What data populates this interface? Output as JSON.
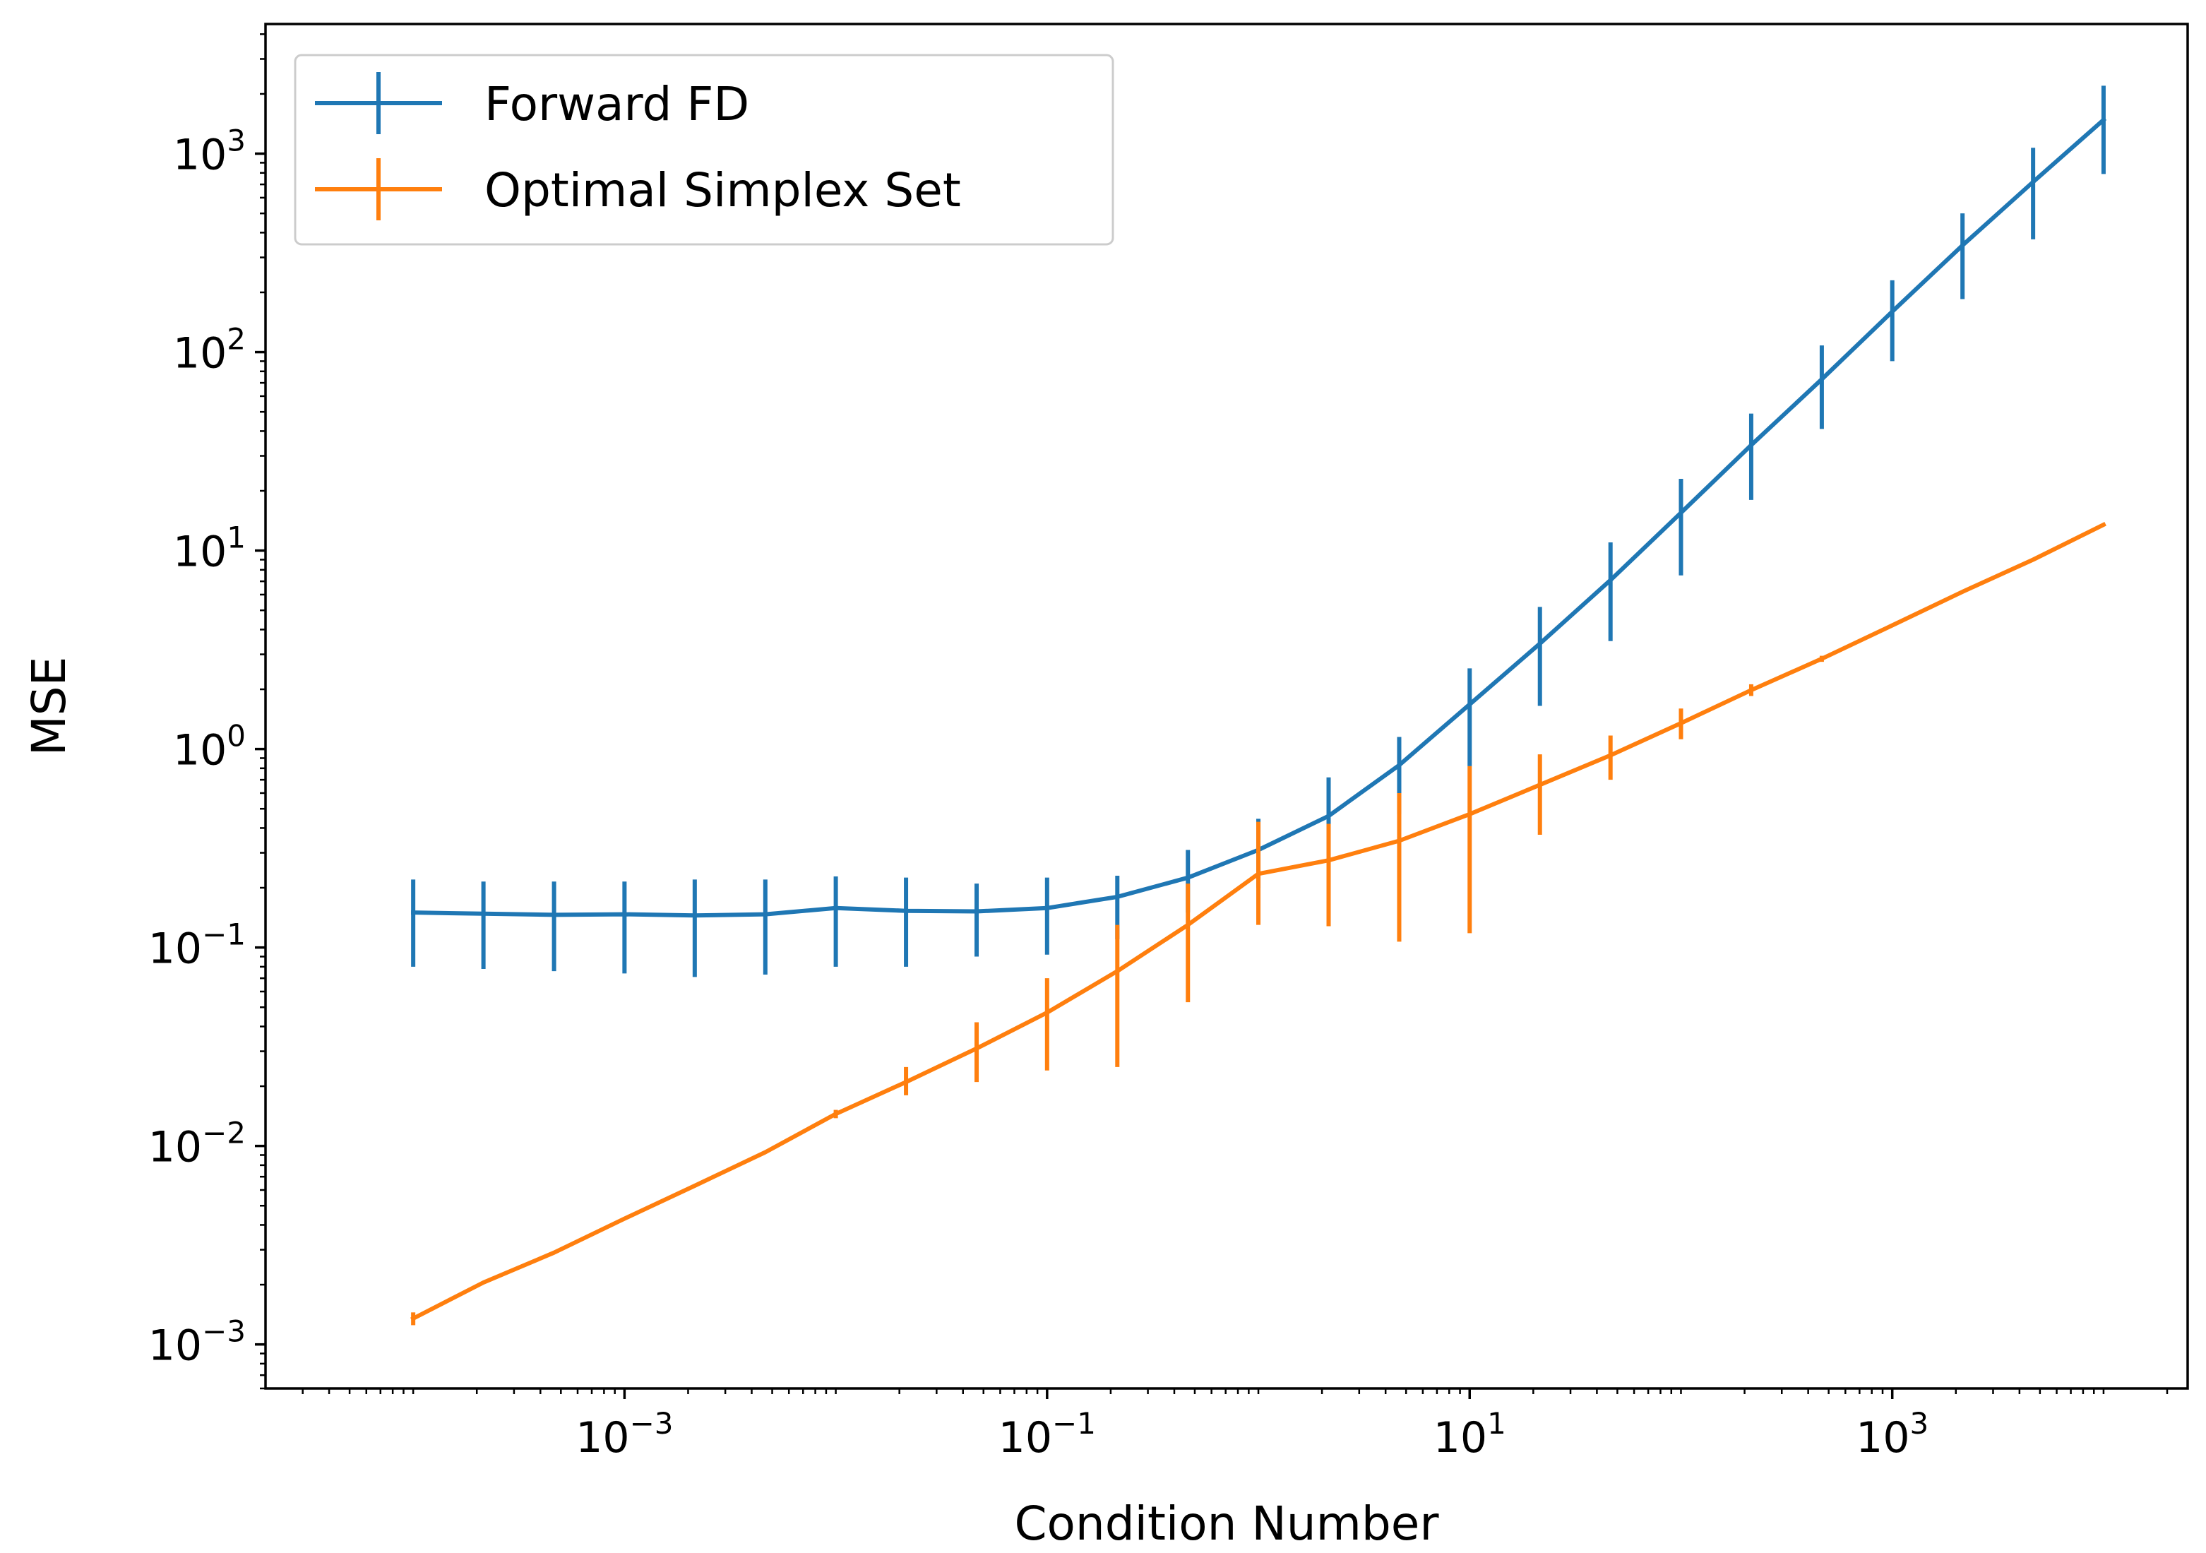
{
  "chart_data": {
    "type": "line",
    "title": "",
    "xlabel": "Condition Number",
    "ylabel": "MSE",
    "xscale": "log",
    "yscale": "log",
    "xlim": [
      2e-05,
      25000
    ],
    "ylim": [
      0.0006,
      4500
    ],
    "grid": false,
    "legend_position": "top-left",
    "x_ticks": [
      {
        "exp": "−3",
        "value": 0.001
      },
      {
        "exp": "−1",
        "value": 0.1
      },
      {
        "exp": "1",
        "value": 10
      },
      {
        "exp": "3",
        "value": 1000
      }
    ],
    "y_ticks": [
      {
        "exp": "−3",
        "value": 0.001
      },
      {
        "exp": "−2",
        "value": 0.01
      },
      {
        "exp": "−1",
        "value": 0.1
      },
      {
        "exp": "0",
        "value": 1
      },
      {
        "exp": "1",
        "value": 10
      },
      {
        "exp": "2",
        "value": 100
      },
      {
        "exp": "3",
        "value": 1000
      }
    ],
    "tick_base": "10",
    "x": [
      0.0001,
      0.000215,
      0.000464,
      0.001,
      0.00215,
      0.00464,
      0.01,
      0.0215,
      0.0464,
      0.1,
      0.215,
      0.464,
      1,
      2.15,
      4.64,
      10,
      21.5,
      46.4,
      100,
      215,
      464,
      1000,
      2150,
      4640,
      10000
    ],
    "series": [
      {
        "name": "Forward FD",
        "color": "#1f77b4",
        "y": [
          0.15,
          0.148,
          0.146,
          0.147,
          0.145,
          0.147,
          0.158,
          0.153,
          0.152,
          0.158,
          0.18,
          0.225,
          0.31,
          0.46,
          0.83,
          1.68,
          3.4,
          7.1,
          15.5,
          34,
          73,
          160,
          345,
          720,
          1480
        ],
        "err_lo": [
          0.08,
          0.078,
          0.076,
          0.074,
          0.071,
          0.073,
          0.08,
          0.08,
          0.09,
          0.092,
          0.11,
          0.15,
          0.2,
          0.29,
          0.47,
          0.82,
          1.65,
          3.5,
          7.5,
          18,
          41,
          90,
          185,
          370,
          790
        ],
        "err_hi": [
          0.22,
          0.215,
          0.215,
          0.215,
          0.22,
          0.22,
          0.228,
          0.225,
          0.21,
          0.225,
          0.23,
          0.31,
          0.445,
          0.72,
          1.15,
          2.55,
          5.2,
          11,
          23,
          49,
          108,
          230,
          500,
          1070,
          2200
        ]
      },
      {
        "name": "Optimal Simplex Set",
        "color": "#ff7f0e",
        "y": [
          0.00135,
          0.00205,
          0.0029,
          0.0043,
          0.0063,
          0.0093,
          0.0145,
          0.021,
          0.031,
          0.047,
          0.076,
          0.13,
          0.235,
          0.275,
          0.345,
          0.47,
          0.66,
          0.93,
          1.35,
          1.98,
          2.85,
          4.2,
          6.2,
          9.0,
          13.5
        ],
        "err_lo": [
          0.00125,
          0.00205,
          0.0029,
          0.0043,
          0.0063,
          0.0093,
          0.0138,
          0.018,
          0.021,
          0.024,
          0.025,
          0.053,
          0.13,
          0.128,
          0.107,
          0.118,
          0.37,
          0.7,
          1.12,
          1.85,
          2.75,
          4.2,
          6.2,
          9.0,
          13.5
        ],
        "err_hi": [
          0.00145,
          0.00205,
          0.0029,
          0.0043,
          0.0063,
          0.0093,
          0.0152,
          0.025,
          0.042,
          0.07,
          0.13,
          0.21,
          0.43,
          0.42,
          0.6,
          0.82,
          0.94,
          1.17,
          1.6,
          2.12,
          2.95,
          4.2,
          6.2,
          9.0,
          13.5
        ]
      }
    ]
  }
}
